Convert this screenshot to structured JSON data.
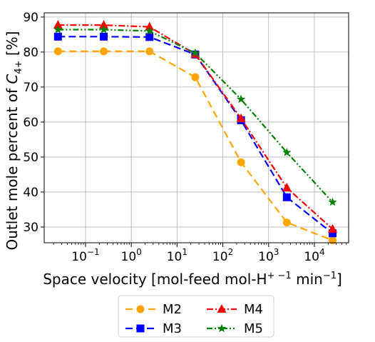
{
  "chart_data": {
    "type": "line",
    "x_scale": "log",
    "xlabel": "Space velocity [mol-feed mol-H",
    "xlabel_sup": "+ −1",
    "xlabel_tail": " min",
    "xlabel_tail_sup": "−1",
    "xlabel_end": "]",
    "ylabel_prefix": "Outlet mole percent of ",
    "ylabel_var": "C",
    "ylabel_sub": "4+",
    "ylabel_suffix": " [%]",
    "xlim": [
      0.0125,
      56000
    ],
    "ylim": [
      25.5,
      91.2
    ],
    "x_ticks": [
      {
        "value": 0.1,
        "base": "10",
        "exp": "−1"
      },
      {
        "value": 1,
        "base": "10",
        "exp": "0"
      },
      {
        "value": 10,
        "base": "10",
        "exp": "1"
      },
      {
        "value": 100,
        "base": "10",
        "exp": "2"
      },
      {
        "value": 1000,
        "base": "10",
        "exp": "3"
      },
      {
        "value": 10000,
        "base": "10",
        "exp": "4"
      }
    ],
    "y_ticks": [
      30,
      40,
      50,
      60,
      70,
      80,
      90
    ],
    "grid": true,
    "legend_position": "below plot",
    "x": [
      0.025,
      0.25,
      2.5,
      25,
      250,
      2500,
      25000
    ],
    "series": [
      {
        "name": "M2",
        "color": "#ffa500",
        "marker": "circle",
        "dash": "10 6",
        "values": [
          80.2,
          80.2,
          80.2,
          72.8,
          48.5,
          31.3,
          26.2
        ]
      },
      {
        "name": "M3",
        "color": "#0000ff",
        "marker": "square",
        "dash": "10 5",
        "values": [
          84.4,
          84.4,
          84.3,
          79.3,
          60.5,
          38.5,
          28.2
        ]
      },
      {
        "name": "M4",
        "color": "#ff0000",
        "marker": "triangle",
        "dash": "9 3 2 3",
        "values": [
          87.7,
          87.7,
          87.2,
          79.4,
          61.0,
          41.2,
          29.4
        ]
      },
      {
        "name": "M5",
        "color": "#008000",
        "marker": "star",
        "dash": "8 3 2 3 2 3",
        "values": [
          86.4,
          86.4,
          86.0,
          79.7,
          66.5,
          51.3,
          37.1
        ]
      }
    ]
  }
}
